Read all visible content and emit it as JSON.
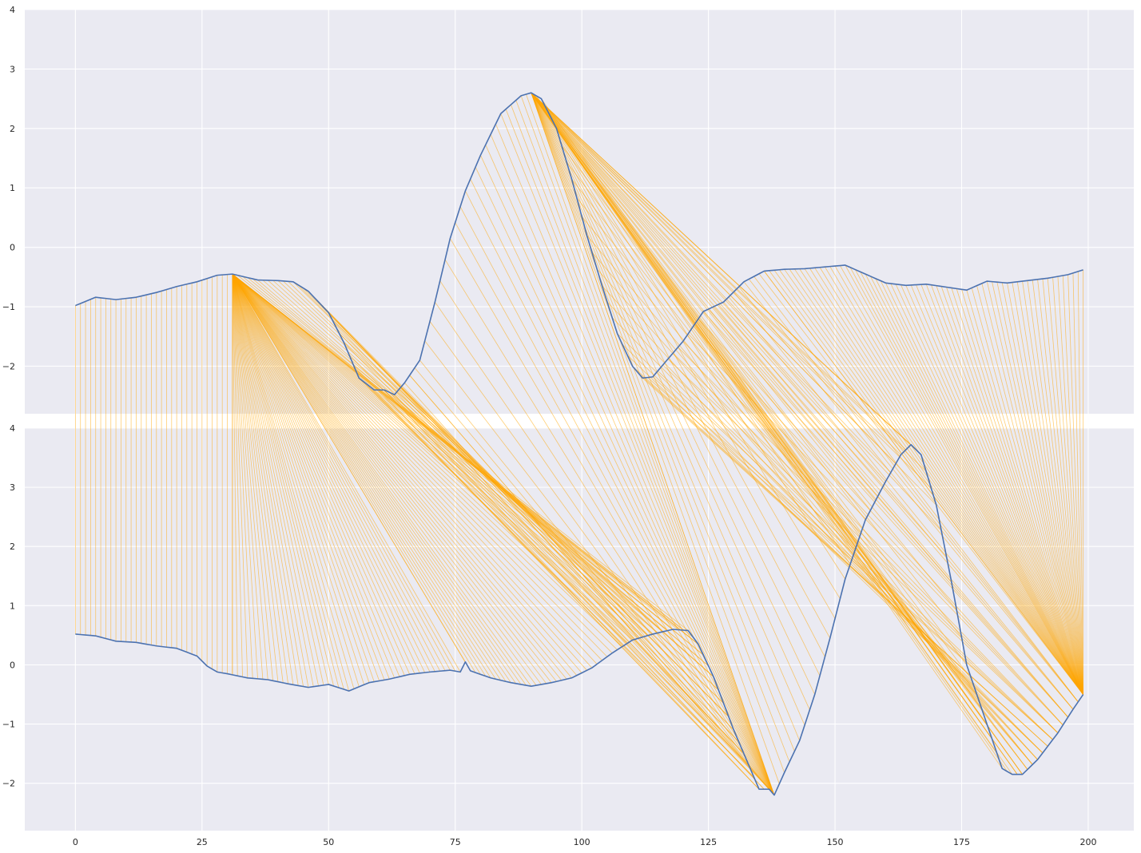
{
  "chart_data": [
    {
      "type": "line",
      "panel": "top",
      "title": "",
      "xlabel": "",
      "ylabel": "",
      "xlim": [
        -10,
        209
      ],
      "ylim": [
        -2.8,
        4
      ],
      "yticks": [
        -2,
        -1,
        0,
        1,
        2,
        3,
        4
      ],
      "xticks": [],
      "grid": true,
      "series_color": "#4c72b0",
      "control_points": [
        [
          0,
          -0.98
        ],
        [
          4,
          -0.84
        ],
        [
          8,
          -0.88
        ],
        [
          12,
          -0.84
        ],
        [
          16,
          -0.76
        ],
        [
          20,
          -0.66
        ],
        [
          24,
          -0.58
        ],
        [
          28,
          -0.47
        ],
        [
          31,
          -0.45
        ],
        [
          36,
          -0.55
        ],
        [
          40,
          -0.56
        ],
        [
          43,
          -0.58
        ],
        [
          46,
          -0.74
        ],
        [
          50,
          -1.1
        ],
        [
          53,
          -1.6
        ],
        [
          56,
          -2.2
        ],
        [
          59,
          -2.4
        ],
        [
          61,
          -2.4
        ],
        [
          63,
          -2.48
        ],
        [
          65,
          -2.28
        ],
        [
          68,
          -1.9
        ],
        [
          71,
          -0.92
        ],
        [
          74,
          0.15
        ],
        [
          77,
          0.95
        ],
        [
          80,
          1.55
        ],
        [
          84,
          2.25
        ],
        [
          88,
          2.55
        ],
        [
          90,
          2.6
        ],
        [
          92,
          2.5
        ],
        [
          95,
          2.0
        ],
        [
          98,
          1.15
        ],
        [
          101,
          0.2
        ],
        [
          104,
          -0.65
        ],
        [
          107,
          -1.45
        ],
        [
          110,
          -2.0
        ],
        [
          112,
          -2.2
        ],
        [
          114,
          -2.18
        ],
        [
          117,
          -1.88
        ],
        [
          120,
          -1.58
        ],
        [
          124,
          -1.08
        ],
        [
          128,
          -0.92
        ],
        [
          132,
          -0.58
        ],
        [
          136,
          -0.4
        ],
        [
          140,
          -0.37
        ],
        [
          144,
          -0.36
        ],
        [
          148,
          -0.33
        ],
        [
          152,
          -0.3
        ],
        [
          156,
          -0.45
        ],
        [
          160,
          -0.6
        ],
        [
          164,
          -0.64
        ],
        [
          168,
          -0.62
        ],
        [
          172,
          -0.67
        ],
        [
          176,
          -0.72
        ],
        [
          180,
          -0.57
        ],
        [
          184,
          -0.6
        ],
        [
          188,
          -0.56
        ],
        [
          192,
          -0.52
        ],
        [
          196,
          -0.46
        ],
        [
          199,
          -0.38
        ]
      ]
    },
    {
      "type": "line",
      "panel": "bottom",
      "title": "",
      "xlabel": "",
      "ylabel": "",
      "xlim": [
        -10,
        209
      ],
      "ylim": [
        -2.8,
        4
      ],
      "yticks": [
        -2,
        -1,
        0,
        1,
        2,
        3,
        4
      ],
      "xticks": [
        0,
        25,
        50,
        75,
        100,
        125,
        150,
        175,
        200
      ],
      "grid": true,
      "series_color": "#4c72b0",
      "control_points": [
        [
          0,
          0.52
        ],
        [
          4,
          0.49
        ],
        [
          8,
          0.4
        ],
        [
          12,
          0.38
        ],
        [
          16,
          0.32
        ],
        [
          20,
          0.28
        ],
        [
          24,
          0.15
        ],
        [
          26,
          -0.02
        ],
        [
          28,
          -0.12
        ],
        [
          30,
          -0.15
        ],
        [
          34,
          -0.22
        ],
        [
          38,
          -0.25
        ],
        [
          42,
          -0.32
        ],
        [
          46,
          -0.38
        ],
        [
          50,
          -0.33
        ],
        [
          54,
          -0.44
        ],
        [
          58,
          -0.3
        ],
        [
          62,
          -0.24
        ],
        [
          66,
          -0.16
        ],
        [
          70,
          -0.12
        ],
        [
          74,
          -0.09
        ],
        [
          76,
          -0.12
        ],
        [
          77,
          0.05
        ],
        [
          78,
          -0.1
        ],
        [
          82,
          -0.22
        ],
        [
          86,
          -0.3
        ],
        [
          90,
          -0.36
        ],
        [
          94,
          -0.3
        ],
        [
          98,
          -0.22
        ],
        [
          102,
          -0.05
        ],
        [
          106,
          0.2
        ],
        [
          110,
          0.42
        ],
        [
          114,
          0.52
        ],
        [
          118,
          0.6
        ],
        [
          121,
          0.58
        ],
        [
          123,
          0.35
        ],
        [
          126,
          -0.2
        ],
        [
          130,
          -1.1
        ],
        [
          133,
          -1.7
        ],
        [
          135,
          -2.1
        ],
        [
          137,
          -2.1
        ],
        [
          138,
          -2.2
        ],
        [
          140,
          -1.82
        ],
        [
          143,
          -1.28
        ],
        [
          146,
          -0.5
        ],
        [
          149,
          0.45
        ],
        [
          152,
          1.45
        ],
        [
          156,
          2.45
        ],
        [
          160,
          3.1
        ],
        [
          163,
          3.55
        ],
        [
          165,
          3.72
        ],
        [
          167,
          3.55
        ],
        [
          170,
          2.7
        ],
        [
          173,
          1.4
        ],
        [
          176,
          0.0
        ],
        [
          180,
          -1.0
        ],
        [
          183,
          -1.75
        ],
        [
          185,
          -1.85
        ],
        [
          187,
          -1.85
        ],
        [
          190,
          -1.6
        ],
        [
          194,
          -1.15
        ],
        [
          197,
          -0.75
        ],
        [
          199,
          -0.5
        ]
      ],
      "peaks": [
        138,
        165,
        187
      ]
    }
  ],
  "alignment": {
    "color": "#ffa500",
    "description_index_map": "each index i of the top series is connected by a line to a matched index j of the bottom series",
    "segments": [
      {
        "top_from": 0,
        "top_to": 31,
        "bottom_from": 0,
        "bottom_to": 31
      },
      {
        "top_from": 31,
        "top_to": 31,
        "bottom_from": 31,
        "bottom_to": 123
      },
      {
        "top_from": 31,
        "top_to": 66,
        "bottom_from": 123,
        "bottom_to": 138
      },
      {
        "top_from": 66,
        "top_to": 90,
        "bottom_from": 138,
        "bottom_to": 138
      },
      {
        "top_from": 90,
        "top_to": 90,
        "bottom_from": 138,
        "bottom_to": 186
      },
      {
        "top_from": 90,
        "top_to": 136,
        "bottom_from": 186,
        "bottom_to": 199
      },
      {
        "top_from": 136,
        "top_to": 199,
        "bottom_from": 199,
        "bottom_to": 199
      }
    ]
  },
  "style": {
    "plot_background": "#eaeaf2",
    "grid_color": "#ffffff",
    "line_color": "#4c72b0",
    "alignment_color": "#ffa500"
  }
}
